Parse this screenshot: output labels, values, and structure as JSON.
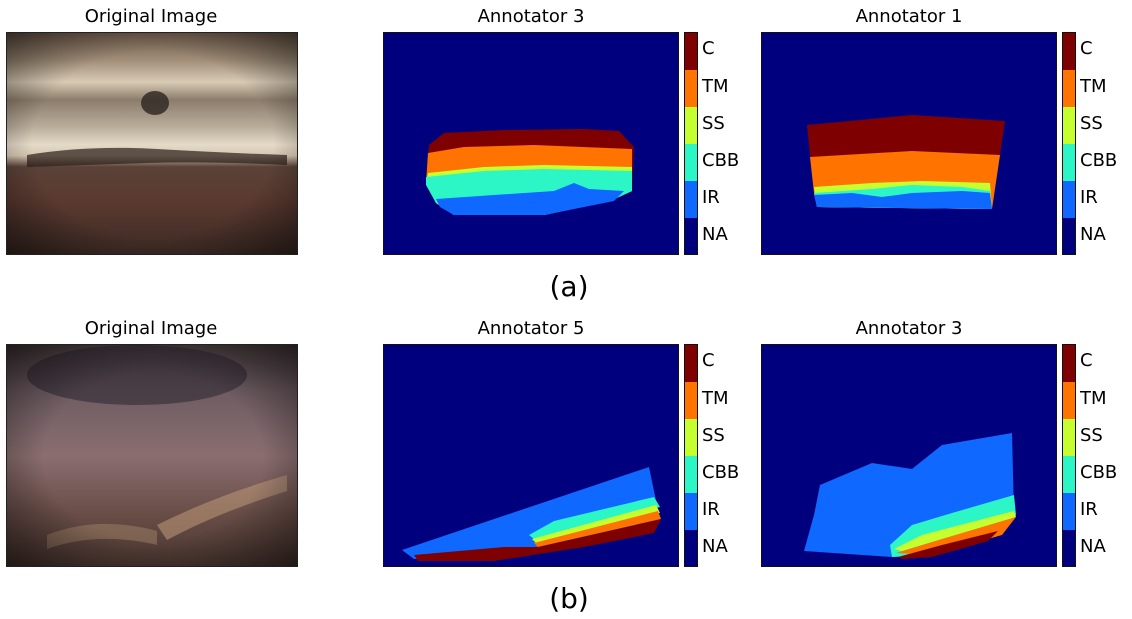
{
  "rows": [
    {
      "caption": "(a)",
      "titles": [
        "Original Image",
        "Annotator 3",
        "Annotator 1"
      ]
    },
    {
      "caption": "(b)",
      "titles": [
        "Original Image",
        "Annotator 5",
        "Annotator 3"
      ]
    }
  ],
  "legend": {
    "labels": [
      "C",
      "TM",
      "SS",
      "CBB",
      "IR",
      "NA"
    ],
    "colors": [
      "#7f0000",
      "#ff7300",
      "#c6ff30",
      "#2cf5c6",
      "#0f68ff",
      "#00007f"
    ]
  }
}
